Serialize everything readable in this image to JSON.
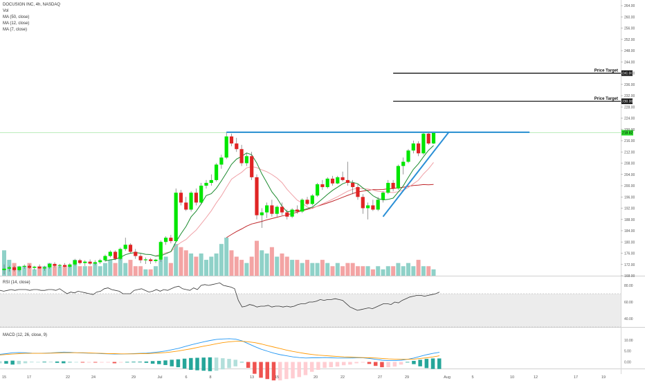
{
  "header": {
    "symbol": "DOCUSIGN INC, 4h, NASDAQ",
    "vol_label": "Vol",
    "ma_labels": [
      "MA (50, close)",
      "MA (12, close)",
      "MA (7, close)"
    ]
  },
  "rsi_panel": {
    "label": "RSI (14, close)",
    "ticks": [
      "80.00",
      "60.00",
      "40.00"
    ]
  },
  "macd_panel": {
    "label": "MACD (12, 26, close, 9)",
    "ticks": [
      "10.00",
      "5.00",
      "0.00"
    ]
  },
  "colors": {
    "up": "#00e600",
    "down": "#e02424",
    "vol_up": "#8fd1c8",
    "vol_down": "#f3a4a4",
    "ma50": "#c0262a",
    "ma12": "#f0a0a6",
    "ma7": "#1b8a2e",
    "trendline": "#2a8fd6",
    "target_line": "#000000"
  },
  "chart_data": {
    "type": "candlestick",
    "x_tick_labels": [
      "15",
      "17",
      "22",
      "24",
      "29",
      "Jul",
      "6",
      "8",
      "13",
      "15",
      "20",
      "22",
      "27",
      "29",
      "Aug",
      "5",
      "10",
      "12",
      "17",
      "19"
    ],
    "y_tick_labels": [
      "168.00",
      "172.00",
      "176.00",
      "180.00",
      "184.00",
      "188.00",
      "192.00",
      "196.00",
      "200.00",
      "204.00",
      "208.00",
      "212.00",
      "216.00",
      "220.00",
      "224.00",
      "228.00",
      "232.00",
      "236.00",
      "240.00",
      "244.00",
      "248.00",
      "252.00",
      "256.00",
      "260.00",
      "264.00"
    ],
    "ylim": [
      168,
      266
    ],
    "last_price_label": "218.82",
    "last_price": 218.82,
    "annotations": [
      {
        "text": "Price Target",
        "price": 240,
        "price_label": "240.00"
      },
      {
        "text": "Price Target",
        "price": 230,
        "price_label": "230.00"
      }
    ],
    "resistance": 219,
    "candles": [
      {
        "o": 170.0,
        "h": 172.0,
        "l": 168.5,
        "c": 170.5
      },
      {
        "o": 170.5,
        "h": 171.5,
        "l": 169.5,
        "c": 171.0
      },
      {
        "o": 171.0,
        "h": 171.5,
        "l": 169.5,
        "c": 170.0
      },
      {
        "o": 170.0,
        "h": 171.5,
        "l": 169.5,
        "c": 171.2
      },
      {
        "o": 171.2,
        "h": 172.0,
        "l": 170.5,
        "c": 171.5
      },
      {
        "o": 171.5,
        "h": 172.0,
        "l": 170.5,
        "c": 170.8
      },
      {
        "o": 170.8,
        "h": 171.5,
        "l": 170.0,
        "c": 171.2
      },
      {
        "o": 171.2,
        "h": 172.0,
        "l": 170.5,
        "c": 170.6
      },
      {
        "o": 170.6,
        "h": 171.5,
        "l": 169.8,
        "c": 171.0
      },
      {
        "o": 171.0,
        "h": 172.5,
        "l": 170.5,
        "c": 172.2
      },
      {
        "o": 172.2,
        "h": 172.8,
        "l": 171.0,
        "c": 171.5
      },
      {
        "o": 171.5,
        "h": 172.2,
        "l": 170.8,
        "c": 171.8
      },
      {
        "o": 171.8,
        "h": 172.5,
        "l": 171.0,
        "c": 171.2
      },
      {
        "o": 171.2,
        "h": 172.5,
        "l": 170.8,
        "c": 172.0
      },
      {
        "o": 172.0,
        "h": 174.0,
        "l": 171.5,
        "c": 173.5
      },
      {
        "o": 173.5,
        "h": 174.0,
        "l": 172.0,
        "c": 172.5
      },
      {
        "o": 172.5,
        "h": 173.5,
        "l": 171.5,
        "c": 173.0
      },
      {
        "o": 173.0,
        "h": 173.8,
        "l": 171.8,
        "c": 172.3
      },
      {
        "o": 172.3,
        "h": 173.5,
        "l": 171.8,
        "c": 172.8
      },
      {
        "o": 172.8,
        "h": 174.0,
        "l": 172.2,
        "c": 173.5
      },
      {
        "o": 173.5,
        "h": 175.5,
        "l": 173.0,
        "c": 175.0
      },
      {
        "o": 175.0,
        "h": 177.0,
        "l": 174.5,
        "c": 176.5
      },
      {
        "o": 176.5,
        "h": 177.0,
        "l": 173.5,
        "c": 174.0
      },
      {
        "o": 174.0,
        "h": 178.0,
        "l": 173.5,
        "c": 177.5
      },
      {
        "o": 177.5,
        "h": 181.5,
        "l": 176.8,
        "c": 179.0
      },
      {
        "o": 179.0,
        "h": 179.5,
        "l": 176.0,
        "c": 176.5
      },
      {
        "o": 176.5,
        "h": 177.5,
        "l": 174.0,
        "c": 175.0
      },
      {
        "o": 175.0,
        "h": 175.8,
        "l": 172.5,
        "c": 173.5
      },
      {
        "o": 173.5,
        "h": 174.5,
        "l": 172.2,
        "c": 173.8
      },
      {
        "o": 173.8,
        "h": 174.3,
        "l": 172.2,
        "c": 173.2
      },
      {
        "o": 173.2,
        "h": 174.0,
        "l": 172.5,
        "c": 173.7
      },
      {
        "o": 173.7,
        "h": 180.5,
        "l": 173.0,
        "c": 180.0
      },
      {
        "o": 180.0,
        "h": 182.0,
        "l": 179.0,
        "c": 181.5
      },
      {
        "o": 181.5,
        "h": 182.5,
        "l": 179.5,
        "c": 180.3
      },
      {
        "o": 180.3,
        "h": 199.0,
        "l": 180.0,
        "c": 197.5
      },
      {
        "o": 197.5,
        "h": 198.5,
        "l": 193.0,
        "c": 194.0
      },
      {
        "o": 194.0,
        "h": 196.0,
        "l": 191.0,
        "c": 191.5
      },
      {
        "o": 191.5,
        "h": 198.0,
        "l": 190.8,
        "c": 197.5
      },
      {
        "o": 197.5,
        "h": 199.0,
        "l": 193.0,
        "c": 194.0
      },
      {
        "o": 194.0,
        "h": 201.0,
        "l": 193.5,
        "c": 200.0
      },
      {
        "o": 200.0,
        "h": 202.0,
        "l": 199.0,
        "c": 201.0
      },
      {
        "o": 201.0,
        "h": 204.0,
        "l": 200.0,
        "c": 202.0
      },
      {
        "o": 202.0,
        "h": 208.0,
        "l": 201.5,
        "c": 207.5
      },
      {
        "o": 207.5,
        "h": 211.0,
        "l": 206.0,
        "c": 210.0
      },
      {
        "o": 210.0,
        "h": 219.0,
        "l": 209.5,
        "c": 217.5
      },
      {
        "o": 217.5,
        "h": 218.5,
        "l": 214.0,
        "c": 215.0
      },
      {
        "o": 215.0,
        "h": 217.0,
        "l": 212.0,
        "c": 213.0
      },
      {
        "o": 213.0,
        "h": 214.5,
        "l": 207.0,
        "c": 208.0
      },
      {
        "o": 208.0,
        "h": 211.5,
        "l": 207.0,
        "c": 210.5
      },
      {
        "o": 210.5,
        "h": 212.0,
        "l": 202.0,
        "c": 203.0
      },
      {
        "o": 203.0,
        "h": 204.0,
        "l": 188.0,
        "c": 189.5
      },
      {
        "o": 189.5,
        "h": 192.0,
        "l": 185.0,
        "c": 190.5
      },
      {
        "o": 190.5,
        "h": 194.0,
        "l": 188.5,
        "c": 193.0
      },
      {
        "o": 193.0,
        "h": 195.0,
        "l": 189.0,
        "c": 190.0
      },
      {
        "o": 190.0,
        "h": 193.0,
        "l": 189.0,
        "c": 192.5
      },
      {
        "o": 192.5,
        "h": 194.0,
        "l": 189.5,
        "c": 190.5
      },
      {
        "o": 190.5,
        "h": 191.5,
        "l": 188.0,
        "c": 189.0
      },
      {
        "o": 189.0,
        "h": 192.0,
        "l": 188.5,
        "c": 191.5
      },
      {
        "o": 191.5,
        "h": 193.0,
        "l": 190.0,
        "c": 190.8
      },
      {
        "o": 190.8,
        "h": 195.5,
        "l": 190.3,
        "c": 195.0
      },
      {
        "o": 195.0,
        "h": 196.0,
        "l": 193.0,
        "c": 193.5
      },
      {
        "o": 193.5,
        "h": 197.0,
        "l": 193.0,
        "c": 196.5
      },
      {
        "o": 196.5,
        "h": 201.0,
        "l": 196.0,
        "c": 200.5
      },
      {
        "o": 200.5,
        "h": 202.0,
        "l": 198.5,
        "c": 199.5
      },
      {
        "o": 199.5,
        "h": 203.0,
        "l": 199.0,
        "c": 202.5
      },
      {
        "o": 202.5,
        "h": 203.5,
        "l": 200.0,
        "c": 200.8
      },
      {
        "o": 200.8,
        "h": 203.5,
        "l": 200.5,
        "c": 203.0
      },
      {
        "o": 203.0,
        "h": 205.0,
        "l": 201.5,
        "c": 202.0
      },
      {
        "o": 202.0,
        "h": 208.5,
        "l": 200.0,
        "c": 201.0
      },
      {
        "o": 201.0,
        "h": 202.0,
        "l": 197.0,
        "c": 199.5
      },
      {
        "o": 199.5,
        "h": 200.5,
        "l": 195.0,
        "c": 196.0
      },
      {
        "o": 196.0,
        "h": 197.0,
        "l": 190.0,
        "c": 192.0
      },
      {
        "o": 192.0,
        "h": 194.0,
        "l": 188.0,
        "c": 193.0
      },
      {
        "o": 193.0,
        "h": 195.0,
        "l": 191.0,
        "c": 191.5
      },
      {
        "o": 191.5,
        "h": 196.0,
        "l": 191.0,
        "c": 195.0
      },
      {
        "o": 195.0,
        "h": 198.0,
        "l": 194.0,
        "c": 197.5
      },
      {
        "o": 197.5,
        "h": 202.0,
        "l": 197.0,
        "c": 201.0
      },
      {
        "o": 201.0,
        "h": 202.0,
        "l": 198.0,
        "c": 199.0
      },
      {
        "o": 199.0,
        "h": 207.5,
        "l": 198.5,
        "c": 207.0
      },
      {
        "o": 207.0,
        "h": 210.0,
        "l": 204.0,
        "c": 208.5
      },
      {
        "o": 208.5,
        "h": 213.0,
        "l": 208.0,
        "c": 212.5
      },
      {
        "o": 212.5,
        "h": 216.0,
        "l": 211.5,
        "c": 215.0
      },
      {
        "o": 215.0,
        "h": 215.8,
        "l": 210.5,
        "c": 211.5
      },
      {
        "o": 211.5,
        "h": 219.0,
        "l": 211.0,
        "c": 218.5
      },
      {
        "o": 218.5,
        "h": 219.2,
        "l": 214.5,
        "c": 215.0
      },
      {
        "o": 215.0,
        "h": 219.2,
        "l": 214.8,
        "c": 218.8
      }
    ],
    "volume": [
      8,
      5,
      4,
      3,
      3,
      4,
      2,
      3,
      3,
      4,
      3,
      3,
      3,
      3,
      5,
      3,
      3,
      3,
      4,
      3,
      4,
      5,
      4,
      6,
      4,
      5,
      3,
      3,
      2,
      2,
      3,
      5,
      6,
      4,
      10,
      9,
      8,
      7,
      6,
      7,
      5,
      6,
      7,
      10,
      12,
      8,
      6,
      5,
      4,
      6,
      11,
      8,
      7,
      9,
      6,
      7,
      6,
      5,
      5,
      4,
      5,
      4,
      4,
      5,
      4,
      3,
      4,
      3,
      4,
      4,
      3,
      3,
      3,
      2,
      3,
      2,
      3,
      3,
      4,
      3,
      4,
      3,
      5,
      3,
      3,
      2
    ],
    "ma50_end": 197.5,
    "ma12_end": 204.0,
    "ma7_end": 211.0,
    "rsi": {
      "ylim": [
        30,
        90
      ],
      "values": [
        74,
        73,
        74,
        75,
        74,
        75,
        75,
        75,
        74,
        75,
        75,
        74,
        74,
        75,
        75,
        74,
        76,
        73,
        70,
        72,
        71,
        73,
        72,
        71,
        70,
        69,
        72,
        73,
        76,
        77,
        75,
        74,
        73,
        70,
        70,
        70,
        74,
        75,
        76,
        74,
        72,
        73,
        75,
        73,
        75,
        74,
        76,
        78,
        79,
        76,
        75,
        74,
        77,
        75,
        80,
        81,
        80,
        81,
        82,
        83,
        80,
        79,
        78,
        76,
        62,
        54,
        55,
        57,
        56,
        54,
        55,
        55,
        56,
        54,
        55,
        55,
        54,
        55,
        54,
        55,
        57,
        58,
        58,
        60,
        60,
        61,
        63,
        62,
        63,
        63,
        64,
        63,
        62,
        58,
        54,
        52,
        50,
        51,
        52,
        53,
        52,
        54,
        56,
        58,
        58,
        57,
        60,
        59,
        62,
        64,
        66,
        67,
        68,
        68,
        67,
        68,
        69,
        70,
        72
      ]
    },
    "macd": {
      "ylim": [
        -3,
        15
      ],
      "macd": [
        3.5,
        3.8,
        4.2,
        4.3,
        4.2,
        4.0,
        3.9,
        4.0,
        4.1,
        4.3,
        4.5,
        4.4,
        4.2,
        4.1,
        4.0,
        3.9,
        3.8,
        3.7,
        3.6,
        3.6,
        3.7,
        3.8,
        3.9,
        4.0,
        4.3,
        4.6,
        5.0,
        5.6,
        6.2,
        7.0,
        7.8,
        8.5,
        9.2,
        9.8,
        10.3,
        10.5,
        10.6,
        10.4,
        9.6,
        8.3,
        7.0,
        5.8,
        4.9,
        4.0,
        3.3,
        2.8,
        2.3,
        2.0,
        1.8,
        1.9,
        1.9,
        2.0,
        1.9,
        1.8,
        1.8,
        1.8,
        1.9,
        1.9,
        1.6,
        1.2,
        0.8,
        0.6,
        0.6,
        0.8,
        1.2,
        1.8,
        2.6,
        3.3,
        3.9,
        4.4
      ],
      "signal": [
        3.2,
        3.4,
        3.6,
        3.8,
        3.9,
        3.9,
        3.9,
        3.9,
        4.0,
        4.1,
        4.2,
        4.2,
        4.2,
        4.2,
        4.1,
        4.0,
        3.9,
        3.8,
        3.8,
        3.7,
        3.7,
        3.7,
        3.8,
        3.8,
        3.9,
        4.1,
        4.3,
        4.6,
        5.0,
        5.5,
        6.0,
        6.6,
        7.2,
        7.7,
        8.3,
        8.8,
        9.2,
        9.4,
        9.4,
        9.2,
        8.8,
        8.2,
        7.5,
        6.8,
        6.1,
        5.4,
        4.8,
        4.3,
        3.8,
        3.4,
        3.1,
        2.9,
        2.7,
        2.5,
        2.3,
        2.2,
        2.1,
        2.0,
        1.9,
        1.8,
        1.6,
        1.4,
        1.3,
        1.2,
        1.2,
        1.3,
        1.6,
        1.9,
        2.3,
        2.8
      ]
    }
  }
}
